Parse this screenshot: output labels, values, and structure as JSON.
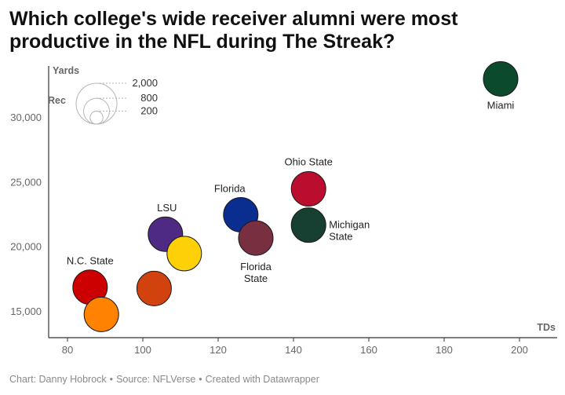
{
  "title": "Which college's wide receiver alumni were most productive in the NFL during The Streak?",
  "footer": {
    "chart_by": "Chart: Danny Hobrock",
    "source": "Source: NFLVerse",
    "created_with": "Created with Datawrapper"
  },
  "chart_data": {
    "type": "scatter",
    "title": "Which college's wide receiver alumni were most productive in the NFL during The Streak?",
    "xlabel": "TDs",
    "ylabel": "Rec",
    "size_label": "Yards",
    "xlim": [
      75,
      210
    ],
    "ylim": [
      13000,
      34000
    ],
    "x_ticks": [
      80,
      100,
      120,
      140,
      160,
      180,
      200
    ],
    "x_tick_labels": [
      "80",
      "100",
      "120",
      "140",
      "160",
      "180",
      "200"
    ],
    "y_ticks": [
      15000,
      20000,
      25000,
      30000
    ],
    "y_tick_labels": [
      "15,000",
      "20,000",
      "25,000",
      "30,000"
    ],
    "size_legend": {
      "values": [
        2000,
        800,
        200
      ],
      "labels": [
        "2,000",
        "800",
        "200"
      ]
    },
    "points": [
      {
        "label": "Miami",
        "x": 195,
        "y": 33000,
        "color": "#0b4a2b",
        "show_label": true
      },
      {
        "label": "Ohio State",
        "x": 144,
        "y": 24500,
        "color": "#bb0e2e",
        "show_label": true
      },
      {
        "label": "Florida",
        "x": 126,
        "y": 22500,
        "color": "#0a2e8f",
        "show_label": true
      },
      {
        "label": "Michigan State",
        "x": 144,
        "y": 21700,
        "color": "#173f32",
        "show_label": true
      },
      {
        "label": "Florida State",
        "x": 130,
        "y": 20700,
        "color": "#782f40",
        "show_label": true
      },
      {
        "label": "LSU",
        "x": 106,
        "y": 21000,
        "color": "#4e2a84",
        "show_label": true
      },
      {
        "label": "",
        "x": 111,
        "y": 19500,
        "color": "#fdd008",
        "show_label": false
      },
      {
        "label": "",
        "x": 103,
        "y": 16800,
        "color": "#d2420f",
        "show_label": false
      },
      {
        "label": "N.C. State",
        "x": 86,
        "y": 16900,
        "color": "#cc0000",
        "show_label": true
      },
      {
        "label": "",
        "x": 89,
        "y": 14800,
        "color": "#ff8200",
        "show_label": false
      }
    ]
  }
}
